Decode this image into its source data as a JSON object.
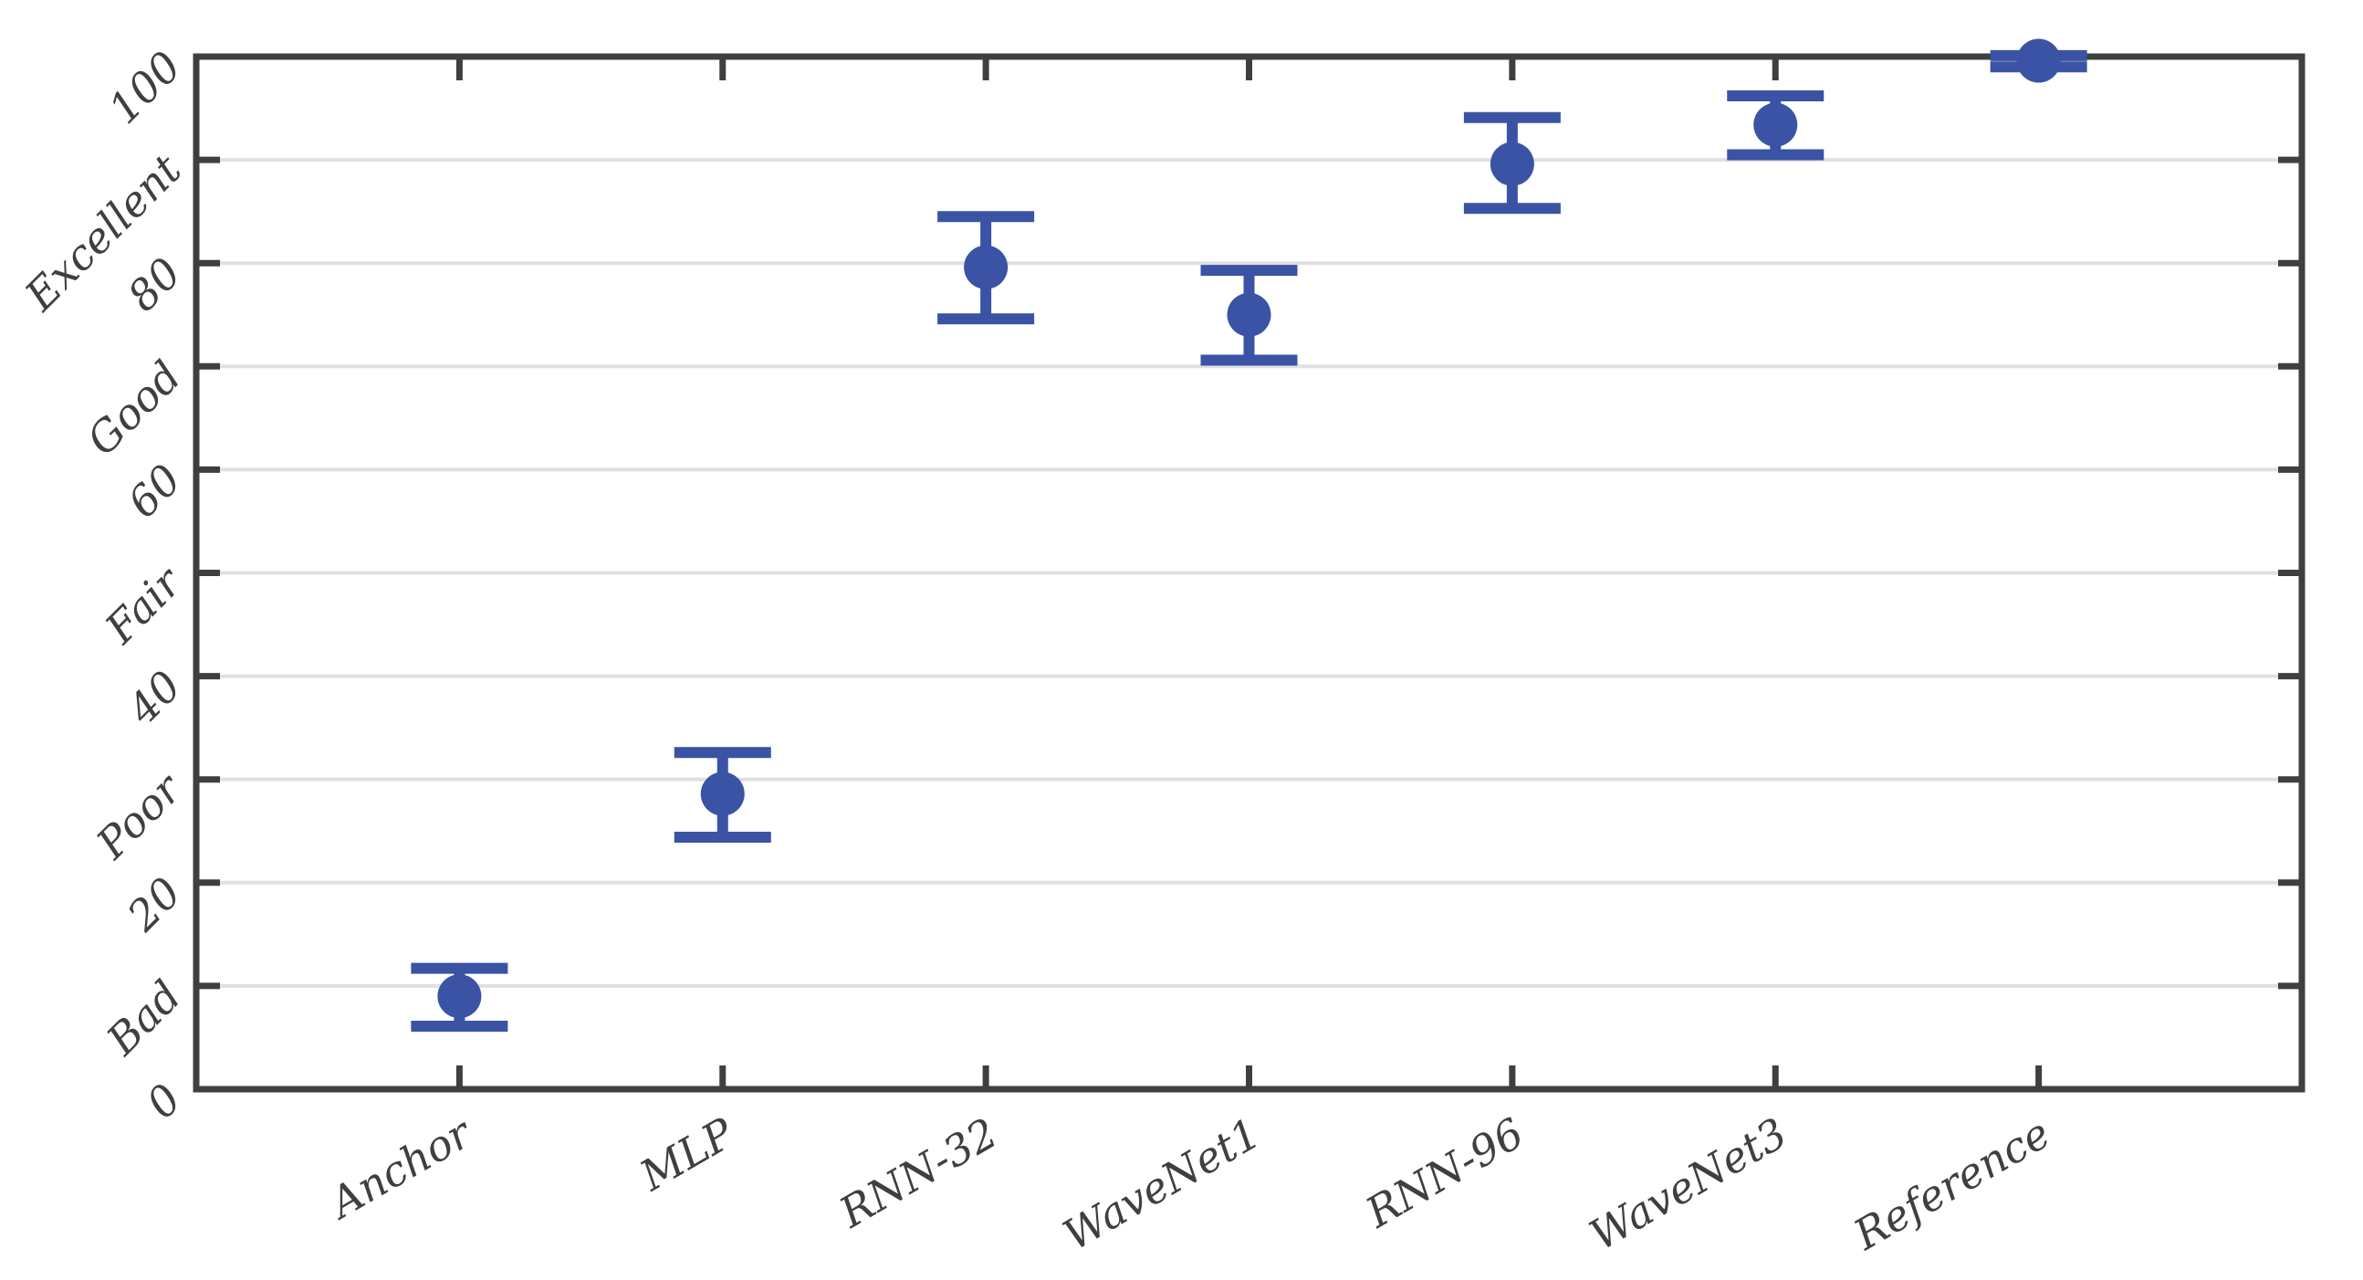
{
  "chart_data": {
    "type": "scatter",
    "subtype": "errorbar",
    "title": "",
    "xlabel": "",
    "ylabel": "",
    "categories": [
      "Anchor",
      "MLP",
      "RNN-32",
      "WaveNet1",
      "RNN-96",
      "WaveNet3",
      "Reference"
    ],
    "series": [
      {
        "name": "mean-opinion-score",
        "means": [
          9.0,
          28.6,
          79.6,
          75.0,
          89.6,
          93.4,
          99.6
        ],
        "ci_low": [
          6.1,
          24.4,
          74.6,
          70.6,
          85.3,
          90.5,
          99.0
        ],
        "ci_high": [
          11.7,
          32.6,
          84.5,
          79.3,
          94.1,
          96.2,
          100.1
        ]
      }
    ],
    "ylim": [
      0,
      100
    ],
    "y_ticks": [
      {
        "value": 0,
        "label": "0"
      },
      {
        "value": 10,
        "label": "Bad"
      },
      {
        "value": 20,
        "label": "20"
      },
      {
        "value": 30,
        "label": "Poor"
      },
      {
        "value": 40,
        "label": "40"
      },
      {
        "value": 50,
        "label": "Fair"
      },
      {
        "value": 60,
        "label": "60"
      },
      {
        "value": 70,
        "label": "Good"
      },
      {
        "value": 80,
        "label": "80"
      },
      {
        "value": 90,
        "label": "Excellent"
      },
      {
        "value": 100,
        "label": "100"
      }
    ],
    "grid": "horizontal-gridlines-at-inner-ticks",
    "legend": "none",
    "colors": {
      "marker": "#3a53a4",
      "axis": "#3f3f3f",
      "gridline": "#e0e0e2",
      "background": "#ffffff"
    }
  }
}
